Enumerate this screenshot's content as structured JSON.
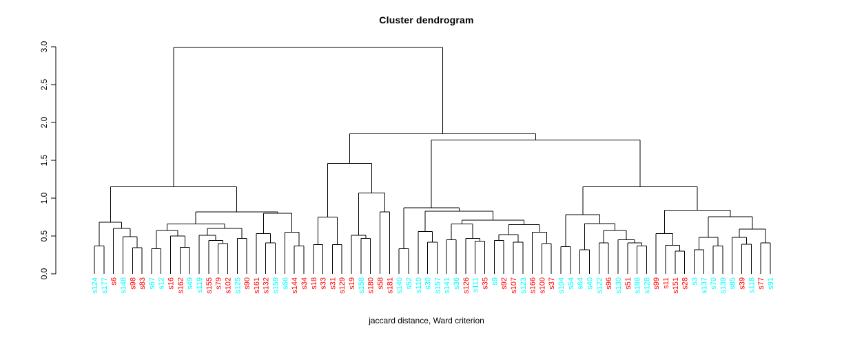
{
  "chart_data": {
    "type": "dendrogram",
    "title": "Cluster dendrogram",
    "caption": "jaccard distance, Ward criterion",
    "y_axis": {
      "range": [
        0,
        3
      ],
      "ticks": [
        0.0,
        0.5,
        1.0,
        1.5,
        2.0,
        2.5,
        3.0
      ],
      "tick_labels": [
        "0.0",
        "0.5",
        "1.0",
        "1.5",
        "2.0",
        "2.5",
        "3.0"
      ]
    },
    "palette": {
      "r": "#FF0000",
      "c": "#00FFFF",
      "line": "#000000"
    },
    "legend": {
      "red_means": "cluster-color-red",
      "cyan_means": "cluster-color-cyan"
    },
    "leaf_order": [
      "s124",
      "s177",
      "s6",
      "s148",
      "s98",
      "s83",
      "s67",
      "s12",
      "s16",
      "s162",
      "s49",
      "s119",
      "s155",
      "s79",
      "s102",
      "s125",
      "s90",
      "s161",
      "s132",
      "s159",
      "s66",
      "s144",
      "s34",
      "s18",
      "s33",
      "s31",
      "s129",
      "s19",
      "s158",
      "s180",
      "s58",
      "s181",
      "s140",
      "s52",
      "s110",
      "s30",
      "s157",
      "s141",
      "s36",
      "s126",
      "s111",
      "s35",
      "s9",
      "s92",
      "s107",
      "s123",
      "s166",
      "s100",
      "s37",
      "s104",
      "s54",
      "s64",
      "s40",
      "s122",
      "s96",
      "s130",
      "s51",
      "s188",
      "s128",
      "s99",
      "s11",
      "s151",
      "s28",
      "s3",
      "s137",
      "s70",
      "s139",
      "s85",
      "s39",
      "s118",
      "s77",
      "s91"
    ],
    "leaf_colors": [
      "c",
      "c",
      "r",
      "c",
      "r",
      "r",
      "c",
      "c",
      "r",
      "r",
      "c",
      "c",
      "r",
      "r",
      "r",
      "c",
      "r",
      "r",
      "r",
      "c",
      "c",
      "r",
      "r",
      "r",
      "r",
      "r",
      "r",
      "r",
      "c",
      "r",
      "r",
      "r",
      "c",
      "c",
      "c",
      "c",
      "c",
      "c",
      "c",
      "r",
      "c",
      "r",
      "c",
      "r",
      "r",
      "c",
      "r",
      "r",
      "r",
      "c",
      "c",
      "c",
      "c",
      "c",
      "r",
      "c",
      "r",
      "c",
      "c",
      "r",
      "r",
      "r",
      "r",
      "c",
      "c",
      "c",
      "c",
      "c",
      "r",
      "c",
      "r",
      "c"
    ],
    "tree": [
      2.99,
      [
        1.15,
        [
          0.68,
          [
            0.37,
            [
              "s124",
              "c"
            ],
            [
              "s177",
              "c"
            ]
          ],
          [
            0.6,
            [
              "s6",
              "r"
            ],
            [
              0.49,
              [
                "s148",
                "c"
              ],
              [
                0.345,
                [
                  "s98",
                  "r"
                ],
                [
                  "s83",
                  "r"
                ]
              ]
            ]
          ]
        ],
        [
          0.82,
          [
            0.66,
            [
              0.575,
              [
                0.33,
                [
                  "s67",
                  "c"
                ],
                [
                  "s12",
                  "c"
                ]
              ],
              [
                0.5,
                [
                  "s16",
                  "r"
                ],
                [
                  0.35,
                  [
                    "s162",
                    "r"
                  ],
                  [
                    "s49",
                    "c"
                  ]
                ]
              ]
            ],
            [
              0.6,
              [
                0.51,
                [
                  "s119",
                  "c"
                ],
                [
                  0.44,
                  [
                    "s155",
                    "r"
                  ],
                  [
                    0.4,
                    [
                      "s79",
                      "r"
                    ],
                    [
                      "s102",
                      "r"
                    ]
                  ]
                ]
              ],
              [
                0.47,
                [
                  "s125",
                  "c"
                ],
                [
                  "s90",
                  "r"
                ]
              ]
            ]
          ],
          [
            0.8,
            [
              0.53,
              [
                "s161",
                "r"
              ],
              [
                0.41,
                [
                  "s132",
                  "r"
                ],
                [
                  "s159",
                  "c"
                ]
              ]
            ],
            [
              0.55,
              [
                "s66",
                "c"
              ],
              [
                0.37,
                [
                  "s144",
                  "r"
                ],
                [
                  "s34",
                  "r"
                ]
              ]
            ]
          ]
        ]
      ],
      [
        1.85,
        [
          1.46,
          [
            0.75,
            [
              0.385,
              [
                "s18",
                "r"
              ],
              [
                "s33",
                "r"
              ]
            ],
            [
              0.385,
              [
                "s31",
                "r"
              ],
              [
                "s129",
                "r"
              ]
            ]
          ],
          [
            1.07,
            [
              0.51,
              [
                "s19",
                "r"
              ],
              [
                0.47,
                [
                  "s158",
                  "c"
                ],
                [
                  "s180",
                  "r"
                ]
              ]
            ],
            [
              0.82,
              [
                "s58",
                "r"
              ],
              [
                "s181",
                "r"
              ]
            ]
          ]
        ],
        [
          1.77,
          [
            0.873,
            [
              0.33,
              [
                "s140",
                "c"
              ],
              [
                "s52",
                "c"
              ]
            ],
            [
              0.828,
              [
                0.557,
                [
                  "s110",
                  "c"
                ],
                [
                  0.42,
                  [
                    "s30",
                    "c"
                  ],
                  [
                    "s157",
                    "c"
                  ]
                ]
              ],
              [
                0.71,
                [
                  0.66,
                  [
                    0.45,
                    [
                      "s141",
                      "c"
                    ],
                    [
                      "s36",
                      "c"
                    ]
                  ],
                  [
                    0.47,
                    [
                      "s126",
                      "r"
                    ],
                    [
                      0.43,
                      [
                        "s111",
                        "c"
                      ],
                      [
                        "s35",
                        "r"
                      ]
                    ]
                  ]
                ],
                [
                  0.65,
                  [
                    0.52,
                    [
                      0.44,
                      [
                        "s9",
                        "c"
                      ],
                      [
                        "s92",
                        "r"
                      ]
                    ],
                    [
                      0.42,
                      [
                        "s107",
                        "r"
                      ],
                      [
                        "s123",
                        "c"
                      ]
                    ]
                  ],
                  [
                    0.55,
                    [
                      "s166",
                      "r"
                    ],
                    [
                      0.4,
                      [
                        "s100",
                        "r"
                      ],
                      [
                        "s37",
                        "r"
                      ]
                    ]
                  ]
                ]
              ]
            ]
          ],
          [
            1.15,
            [
              0.783,
              [
                0.36,
                [
                  "s104",
                  "c"
                ],
                [
                  "s54",
                  "c"
                ]
              ],
              [
                0.662,
                [
                  0.32,
                  [
                    "s64",
                    "c"
                  ],
                  [
                    "s40",
                    "c"
                  ]
                ],
                [
                  0.572,
                  [
                    0.41,
                    [
                      "s122",
                      "c"
                    ],
                    [
                      "s96",
                      "r"
                    ]
                  ],
                  [
                    0.452,
                    [
                      "s130",
                      "c"
                    ],
                    [
                      0.41,
                      [
                        "s51",
                        "r"
                      ],
                      [
                        0.37,
                        [
                          "s188",
                          "c"
                        ],
                        [
                          "s128",
                          "c"
                        ]
                      ]
                    ]
                  ]
                ]
              ]
            ],
            [
              0.84,
              [
                0.533,
                [
                  "s99",
                  "r"
                ],
                [
                  0.377,
                  [
                    "s11",
                    "r"
                  ],
                  [
                    0.3,
                    [
                      "s151",
                      "r"
                    ],
                    [
                      "s28",
                      "r"
                    ]
                  ]
                ]
              ],
              [
                0.753,
                [
                  0.48,
                  [
                    0.32,
                    [
                      "s3",
                      "c"
                    ],
                    [
                      "s137",
                      "c"
                    ]
                  ],
                  [
                    0.37,
                    [
                      "s70",
                      "c"
                    ],
                    [
                      "s139",
                      "c"
                    ]
                  ]
                ],
                [
                  0.59,
                  [
                    0.48,
                    [
                      "s85",
                      "c"
                    ],
                    [
                      0.39,
                      [
                        "s39",
                        "r"
                      ],
                      [
                        "s118",
                        "c"
                      ]
                    ]
                  ],
                  [
                    0.41,
                    [
                      "s77",
                      "r"
                    ],
                    [
                      "s91",
                      "c"
                    ]
                  ]
                ]
              ]
            ]
          ]
        ]
      ]
    ]
  }
}
